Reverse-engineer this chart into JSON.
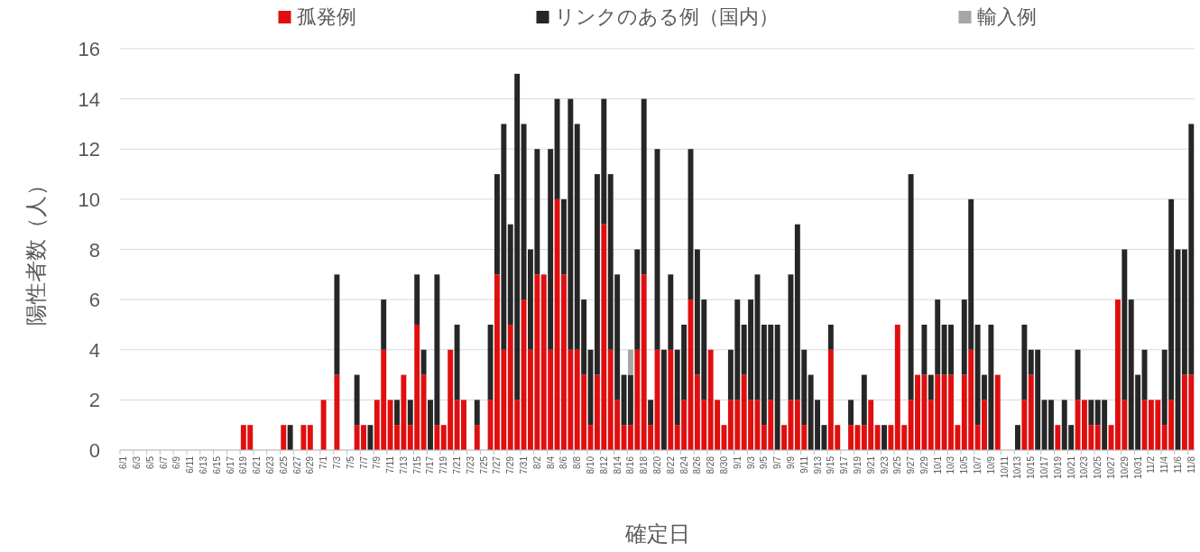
{
  "chart_data": {
    "type": "bar",
    "stacked": true,
    "xlabel": "確定日",
    "ylabel": "陽性者数（人）",
    "ylim": [
      0,
      16
    ],
    "yticks": [
      0,
      2,
      4,
      6,
      8,
      10,
      12,
      14,
      16
    ],
    "grid": "y",
    "legend": "top",
    "categories": [
      "6/1",
      null,
      "6/3",
      null,
      "6/5",
      null,
      "6/7",
      null,
      "6/9",
      null,
      "6/11",
      null,
      "6/13",
      null,
      "6/15",
      null,
      "6/17",
      null,
      "6/19",
      null,
      "6/21",
      null,
      "6/23",
      null,
      "6/25",
      null,
      "6/27",
      null,
      "6/29",
      null,
      "7/1",
      null,
      "7/3",
      null,
      "7/5",
      null,
      "7/7",
      null,
      "7/9",
      null,
      "7/11",
      null,
      "7/13",
      null,
      "7/15",
      null,
      "7/17",
      null,
      "7/19",
      null,
      "7/21",
      null,
      "7/23",
      null,
      "7/25",
      null,
      "7/27",
      null,
      "7/29",
      null,
      "7/31",
      null,
      "8/2",
      null,
      "8/4",
      null,
      "8/6",
      null,
      "8/8",
      null,
      "8/10",
      null,
      "8/12",
      null,
      "8/14",
      null,
      "8/16",
      null,
      "8/18",
      null,
      "8/20",
      null,
      "8/22",
      null,
      "8/24",
      null,
      "8/26",
      null,
      "8/28",
      null,
      "8/30",
      null,
      "9/1",
      null,
      "9/3",
      null,
      "9/5",
      null,
      "9/7",
      null,
      "9/9",
      null,
      "9/11",
      null,
      "9/13",
      null,
      "9/15",
      null,
      "9/17",
      null,
      "9/19",
      null,
      "9/21",
      null,
      "9/23",
      null,
      "9/25",
      null,
      "9/27",
      null,
      "9/29",
      null,
      "10/1",
      null,
      "10/3",
      null,
      "10/5",
      null,
      "10/7",
      null,
      "10/9",
      null,
      "10/11",
      null,
      "10/13",
      null,
      "10/15",
      null,
      "10/17",
      null,
      "10/19",
      null,
      "10/21",
      null,
      "10/23",
      null,
      "10/25",
      null,
      "10/27",
      null,
      "10/29",
      null,
      "10/31",
      null,
      "11/2",
      null,
      "11/4",
      null,
      "11/6",
      null,
      "11/8"
    ],
    "series": [
      {
        "name": "孤発例",
        "color": "#e00f0f",
        "values": [
          0,
          0,
          0,
          0,
          0,
          0,
          0,
          0,
          0,
          0,
          0,
          0,
          0,
          0,
          0,
          0,
          0,
          0,
          1,
          1,
          0,
          0,
          0,
          0,
          1,
          0,
          0,
          1,
          1,
          0,
          2,
          0,
          3,
          0,
          0,
          1,
          1,
          0,
          2,
          4,
          2,
          1,
          3,
          1,
          5,
          3,
          0,
          1,
          1,
          4,
          2,
          2,
          0,
          1,
          0,
          2,
          7,
          4,
          5,
          2,
          6,
          4,
          7,
          7,
          4,
          10,
          7,
          4,
          4,
          3,
          1,
          3,
          9,
          4,
          2,
          1,
          1,
          4,
          7,
          1,
          4,
          0,
          4,
          1,
          2,
          6,
          3,
          2,
          4,
          2,
          1,
          2,
          2,
          3,
          2,
          2,
          1,
          2,
          0,
          1,
          2,
          2,
          1,
          0,
          0,
          0,
          4,
          1,
          0,
          1,
          1,
          1,
          2,
          1,
          0,
          1,
          5,
          1,
          2,
          3,
          3,
          2,
          3,
          3,
          3,
          1,
          3,
          4,
          1,
          2,
          0,
          3,
          0,
          0,
          0,
          2,
          3,
          0,
          0,
          0,
          1,
          0,
          0,
          2,
          2,
          1,
          1,
          0,
          1,
          6,
          2,
          0,
          0,
          2,
          2,
          2,
          1,
          2,
          0,
          3,
          3
        ]
      },
      {
        "name": "リンクのある例（国内）",
        "color": "#262626",
        "values": [
          0,
          0,
          0,
          0,
          0,
          0,
          0,
          0,
          0,
          0,
          0,
          0,
          0,
          0,
          0,
          0,
          0,
          0,
          0,
          0,
          0,
          0,
          0,
          0,
          0,
          1,
          0,
          0,
          0,
          0,
          0,
          0,
          4,
          0,
          0,
          2,
          0,
          1,
          0,
          2,
          0,
          1,
          0,
          1,
          2,
          1,
          2,
          6,
          0,
          0,
          3,
          0,
          0,
          1,
          0,
          3,
          4,
          9,
          4,
          13,
          7,
          4,
          5,
          0,
          8,
          4,
          3,
          10,
          9,
          3,
          3,
          8,
          5,
          7,
          5,
          2,
          2,
          4,
          7,
          1,
          8,
          4,
          3,
          3,
          3,
          6,
          5,
          4,
          0,
          0,
          0,
          2,
          4,
          2,
          4,
          5,
          4,
          3,
          5,
          0,
          5,
          7,
          3,
          3,
          2,
          1,
          1,
          0,
          0,
          1,
          0,
          2,
          0,
          0,
          1,
          0,
          0,
          0,
          9,
          0,
          2,
          1,
          3,
          2,
          2,
          0,
          3,
          6,
          4,
          1,
          5,
          0,
          0,
          0,
          1,
          3,
          1,
          4,
          2,
          2,
          0,
          2,
          1,
          2,
          0,
          1,
          1,
          2,
          0,
          0,
          6,
          6,
          3,
          2,
          0,
          0,
          3,
          8,
          8,
          5,
          10
        ]
      },
      {
        "name": "輸入例",
        "color": "#a6a6a6",
        "values": [
          0,
          0,
          0,
          0,
          0,
          0,
          0,
          0,
          0,
          0,
          0,
          0,
          0,
          0,
          0,
          0,
          0,
          0,
          0,
          0,
          0,
          0,
          0,
          0,
          0,
          0,
          0,
          0,
          0,
          0,
          0,
          0,
          0,
          0,
          0,
          0,
          0,
          0,
          0,
          0,
          0,
          0,
          0,
          0,
          0,
          0,
          0,
          0,
          0,
          0,
          0,
          0,
          0,
          0,
          0,
          0,
          0,
          0,
          0,
          0,
          0,
          0,
          0,
          0,
          0,
          0,
          0,
          0,
          0,
          0,
          0,
          0,
          0,
          0,
          0,
          0,
          1,
          0,
          0,
          0,
          0,
          0,
          0,
          0,
          0,
          0,
          0,
          0,
          0,
          0,
          0,
          0,
          0,
          0,
          0,
          0,
          0,
          0,
          0,
          0,
          0,
          0,
          0,
          0,
          0,
          0,
          0,
          0,
          0,
          0,
          0,
          0,
          0,
          0,
          0,
          0,
          0,
          0,
          0,
          0,
          0,
          0,
          0,
          0,
          0,
          0,
          0,
          0,
          0,
          0,
          0,
          0,
          0,
          0,
          0,
          0,
          0,
          0,
          0,
          0,
          0,
          0,
          0,
          0,
          0,
          0,
          0,
          0,
          0,
          0,
          0,
          0,
          0,
          0,
          0,
          0,
          0,
          0,
          0,
          0,
          0
        ]
      }
    ]
  }
}
